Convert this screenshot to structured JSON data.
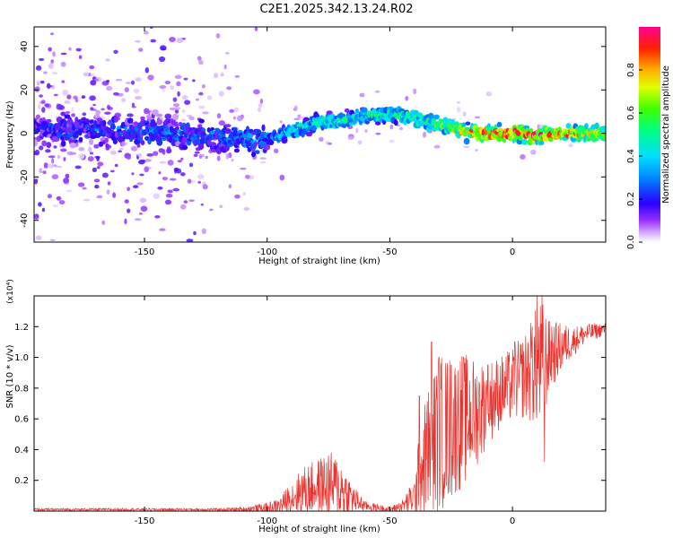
{
  "title": "C2E1.2025.342.13.24.R02",
  "chart_data": [
    {
      "type": "heatmap",
      "xlabel": "Height of straight line (km)",
      "ylabel": "Frequency (Hz)",
      "xlim": [
        -195,
        38
      ],
      "ylim": [
        -50,
        49
      ],
      "xticks": [
        -150,
        -100,
        -50,
        0
      ],
      "yticks": [
        -40,
        -20,
        0,
        20,
        40
      ],
      "colorbar": {
        "label": "Normalized spectral amplitude",
        "range": [
          0,
          1
        ],
        "ticks": [
          "0.0",
          "0.2",
          "0.4",
          "0.6",
          "0.8"
        ],
        "tick_values": [
          0,
          0.2,
          0.4,
          0.6,
          0.8
        ],
        "colormap": [
          "#ffffff",
          "#d9b3ff",
          "#8a00ff",
          "#2a00ff",
          "#00c8ff",
          "#00ff80",
          "#80ff00",
          "#ffff00",
          "#ff8000",
          "#ff0000",
          "#ff0080"
        ]
      },
      "ridge": {
        "description": "dominant frequency trace vs height",
        "x": [
          -195,
          -150,
          -120,
          -100,
          -90,
          -80,
          -70,
          -60,
          -50,
          -40,
          -30,
          -20,
          -10,
          0,
          10,
          20,
          30,
          38
        ],
        "freq_hz": [
          2,
          1,
          -2,
          -3,
          1,
          5,
          6,
          8,
          9,
          7,
          4,
          1,
          0,
          0,
          -1,
          0,
          0,
          0
        ],
        "peak_amplitude": [
          0.25,
          0.3,
          0.3,
          0.35,
          0.45,
          0.5,
          0.5,
          0.5,
          0.55,
          0.55,
          0.6,
          0.75,
          0.9,
          0.95,
          0.9,
          0.85,
          0.75,
          0.7
        ]
      }
    },
    {
      "type": "line",
      "color": "#e8332e",
      "xlabel": "Height of straight line (km)",
      "ylabel": "SNR (10 * v/v)",
      "scale_label": "(x10⁴)",
      "xlim": [
        -195,
        38
      ],
      "ylim": [
        0,
        1.4
      ],
      "xticks": [
        -150,
        -100,
        -50,
        0
      ],
      "yticks": [
        0.2,
        0.4,
        0.6,
        0.8,
        1.0,
        1.2
      ],
      "ytick_labels": [
        "0.2",
        "0.4",
        "0.6",
        "0.8",
        "1.0",
        "1.2"
      ],
      "envelope": {
        "x": [
          -195,
          -160,
          -120,
          -110,
          -100,
          -95,
          -90,
          -85,
          -80,
          -75,
          -70,
          -65,
          -60,
          -55,
          -50,
          -45,
          -40,
          -38,
          -35,
          -30,
          -25,
          -20,
          -15,
          -10,
          -5,
          0,
          5,
          10,
          12,
          15,
          20,
          25,
          30,
          38
        ],
        "base": [
          0.01,
          0.01,
          0.01,
          0.01,
          0.02,
          0.03,
          0.08,
          0.12,
          0.14,
          0.15,
          0.13,
          0.07,
          0.03,
          0.02,
          0.01,
          0.03,
          0.08,
          0.2,
          0.35,
          0.45,
          0.5,
          0.55,
          0.6,
          0.68,
          0.75,
          0.8,
          0.85,
          0.9,
          0.9,
          0.98,
          1.05,
          1.1,
          1.15,
          1.18
        ],
        "amp": [
          0.01,
          0.01,
          0.01,
          0.02,
          0.04,
          0.06,
          0.14,
          0.2,
          0.22,
          0.28,
          0.25,
          0.12,
          0.04,
          0.03,
          0.02,
          0.05,
          0.15,
          0.35,
          0.5,
          0.65,
          0.6,
          0.55,
          0.45,
          0.35,
          0.3,
          0.3,
          0.35,
          0.5,
          0.55,
          0.3,
          0.2,
          0.12,
          0.08,
          0.05
        ]
      },
      "spikes": [
        {
          "x": -38,
          "y": 0.75
        },
        {
          "x": -33,
          "y": 1.1
        },
        {
          "x": -30,
          "y": 1.0
        },
        {
          "x": -25,
          "y": 0.95
        },
        {
          "x": -20,
          "y": 1.0
        },
        {
          "x": -10,
          "y": 0.95
        },
        {
          "x": 1,
          "y": 1.1
        },
        {
          "x": 8,
          "y": 1.2
        },
        {
          "x": 10,
          "y": 1.4
        },
        {
          "x": 12,
          "y": 1.4
        },
        {
          "x": 13,
          "y": 0.32
        },
        {
          "x": 16,
          "y": 1.2
        }
      ]
    }
  ]
}
